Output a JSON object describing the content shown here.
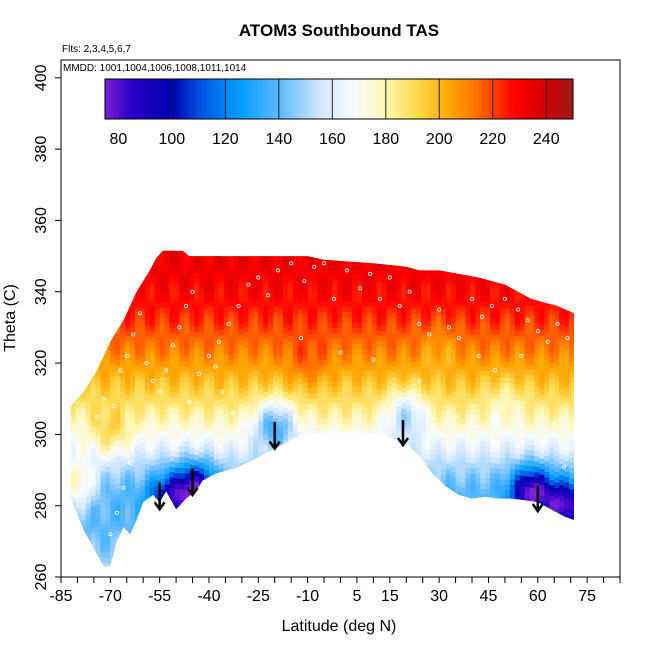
{
  "chart_data": {
    "type": "heatmap",
    "title": "ATOM3 Southbound TAS",
    "annotations": {
      "flights": "Flts: 2,3,4,5,6,7",
      "dates": "MMDD: 1001,1004,1006,1008,1011,1014"
    },
    "xlabel": "Latitude (deg N)",
    "ylabel": "Theta (C)",
    "xlim": [
      -85,
      85
    ],
    "ylim": [
      260,
      405
    ],
    "x_ticks": [
      -85,
      -80,
      -75,
      -70,
      -65,
      -60,
      -55,
      -50,
      -45,
      -40,
      -35,
      -30,
      -25,
      -20,
      -15,
      -10,
      -5,
      0,
      5,
      10,
      15,
      20,
      25,
      30,
      35,
      40,
      45,
      50,
      55,
      60,
      65,
      70,
      75,
      80,
      85
    ],
    "x_tick_labels": [
      {
        "value": -85,
        "label": "-85"
      },
      {
        "value": -70,
        "label": "-70"
      },
      {
        "value": -55,
        "label": "-55"
      },
      {
        "value": -40,
        "label": "-40"
      },
      {
        "value": -25,
        "label": "-25"
      },
      {
        "value": -10,
        "label": "-10"
      },
      {
        "value": 5,
        "label": "5"
      },
      {
        "value": 15,
        "label": "15"
      },
      {
        "value": 30,
        "label": "30"
      },
      {
        "value": 45,
        "label": "45"
      },
      {
        "value": 60,
        "label": "60"
      },
      {
        "value": 75,
        "label": "75"
      }
    ],
    "y_tick_labels": [
      {
        "value": 260,
        "label": "260"
      },
      {
        "value": 280,
        "label": "280"
      },
      {
        "value": 300,
        "label": "300"
      },
      {
        "value": 320,
        "label": "320"
      },
      {
        "value": 340,
        "label": "340"
      },
      {
        "value": 360,
        "label": "360"
      },
      {
        "value": 380,
        "label": "380"
      },
      {
        "value": 400,
        "label": "400"
      }
    ],
    "colorbar": {
      "range": [
        75,
        250
      ],
      "tick_labels": [
        {
          "value": 80,
          "label": "80"
        },
        {
          "value": 100,
          "label": "100"
        },
        {
          "value": 120,
          "label": "120"
        },
        {
          "value": 140,
          "label": "140"
        },
        {
          "value": 160,
          "label": "160"
        },
        {
          "value": 180,
          "label": "180"
        },
        {
          "value": 200,
          "label": "200"
        },
        {
          "value": 220,
          "label": "220"
        },
        {
          "value": 240,
          "label": "240"
        }
      ],
      "separators": [
        100,
        120,
        140,
        160,
        180,
        200,
        220,
        240
      ],
      "color_stops": [
        {
          "v": 75,
          "c": "#7b1fd4"
        },
        {
          "v": 85,
          "c": "#2a00c8"
        },
        {
          "v": 100,
          "c": "#0000b0"
        },
        {
          "v": 110,
          "c": "#0050e0"
        },
        {
          "v": 125,
          "c": "#009cff"
        },
        {
          "v": 140,
          "c": "#5bb8ff"
        },
        {
          "v": 155,
          "c": "#cfe6ff"
        },
        {
          "v": 168,
          "c": "#f8fbff"
        },
        {
          "v": 180,
          "c": "#fff6b0"
        },
        {
          "v": 192,
          "c": "#ffd84a"
        },
        {
          "v": 205,
          "c": "#ffa200"
        },
        {
          "v": 215,
          "c": "#ff6a00"
        },
        {
          "v": 228,
          "c": "#ff0000"
        },
        {
          "v": 240,
          "c": "#d40000"
        },
        {
          "v": 250,
          "c": "#9c1b1b"
        }
      ]
    },
    "domain": {
      "lat_range": [
        -82,
        71
      ],
      "lower_bound": [
        [
          -82,
          282
        ],
        [
          -78,
          273
        ],
        [
          -75,
          268
        ],
        [
          -72,
          263
        ],
        [
          -70,
          263
        ],
        [
          -68,
          270
        ],
        [
          -66,
          274
        ],
        [
          -64,
          272
        ],
        [
          -62,
          276
        ],
        [
          -60,
          281
        ],
        [
          -57,
          283
        ],
        [
          -55,
          281
        ],
        [
          -53,
          284
        ],
        [
          -50,
          279
        ],
        [
          -47,
          282
        ],
        [
          -44,
          284
        ],
        [
          -42,
          287
        ],
        [
          -38,
          289
        ],
        [
          -32,
          290.5
        ],
        [
          -26,
          293
        ],
        [
          -21,
          295.5
        ],
        [
          -16,
          298
        ],
        [
          -12,
          300
        ],
        [
          -5,
          300.5
        ],
        [
          0,
          300.5
        ],
        [
          5,
          300.5
        ],
        [
          10,
          300.3
        ],
        [
          15,
          299.2
        ],
        [
          18,
          298
        ],
        [
          21,
          296.5
        ],
        [
          24,
          294
        ],
        [
          28,
          289
        ],
        [
          32,
          285.5
        ],
        [
          36,
          283
        ],
        [
          40,
          282
        ],
        [
          44,
          282.5
        ],
        [
          48,
          282
        ],
        [
          52,
          282
        ],
        [
          56,
          281.5
        ],
        [
          60,
          281
        ],
        [
          64,
          279
        ],
        [
          68,
          277
        ],
        [
          71,
          276
        ]
      ],
      "upper_bound": [
        [
          -82,
          308
        ],
        [
          -78,
          312
        ],
        [
          -74,
          318
        ],
        [
          -70,
          326
        ],
        [
          -66,
          332
        ],
        [
          -62,
          340
        ],
        [
          -58,
          346
        ],
        [
          -56,
          349.5
        ],
        [
          -54,
          351.5
        ],
        [
          -48,
          351.5
        ],
        [
          -46,
          350
        ],
        [
          -30,
          350
        ],
        [
          -10,
          350
        ],
        [
          -5,
          349
        ],
        [
          10,
          348
        ],
        [
          20,
          347
        ],
        [
          24,
          346
        ],
        [
          30,
          346
        ],
        [
          36,
          345
        ],
        [
          42,
          344
        ],
        [
          46,
          343
        ],
        [
          50,
          342
        ],
        [
          54,
          340
        ],
        [
          58,
          338
        ],
        [
          62,
          337
        ],
        [
          66,
          336
        ],
        [
          71,
          334
        ]
      ]
    },
    "field": {
      "base_temperature": [
        [
          262,
          150
        ],
        [
          268,
          145
        ],
        [
          274,
          140
        ],
        [
          280,
          138
        ],
        [
          285,
          140
        ],
        [
          292,
          152
        ],
        [
          296,
          162
        ],
        [
          300,
          170
        ],
        [
          304,
          178
        ],
        [
          308,
          186
        ],
        [
          312,
          193
        ],
        [
          316,
          200
        ],
        [
          320,
          206
        ],
        [
          324,
          212
        ],
        [
          328,
          217
        ],
        [
          332,
          222
        ],
        [
          336,
          226
        ],
        [
          342,
          230
        ],
        [
          352,
          234
        ]
      ],
      "anomalies": [
        {
          "lat": -80,
          "theta": 286,
          "amplitude": 35
        },
        {
          "lat": -70,
          "theta": 300,
          "amplitude": 20
        },
        {
          "lat": -52,
          "theta": 282,
          "amplitude": -45
        },
        {
          "lat": -44,
          "theta": 285,
          "amplitude": -60
        },
        {
          "lat": -20,
          "theta": 303,
          "amplitude": -40
        },
        {
          "lat": 20,
          "theta": 306,
          "amplitude": -30
        },
        {
          "lat": 58,
          "theta": 284,
          "amplitude": -65
        },
        {
          "lat": 68,
          "theta": 280,
          "amplitude": -60
        },
        {
          "lat": 50,
          "theta": 310,
          "amplitude": -10
        },
        {
          "lat": -10,
          "theta": 320,
          "amplitude": 10
        },
        {
          "lat": 30,
          "theta": 325,
          "amplitude": -8
        }
      ]
    },
    "tropopause_arrows": [
      {
        "lat": -55,
        "theta_top": 286.5,
        "theta_tip": 279
      },
      {
        "lat": -45,
        "theta_top": 290.5,
        "theta_tip": 283
      },
      {
        "lat": -20,
        "theta_top": 303.5,
        "theta_tip": 296
      },
      {
        "lat": 19,
        "theta_top": 304,
        "theta_tip": 297
      },
      {
        "lat": 60,
        "theta_top": 285.5,
        "theta_tip": 278.5
      }
    ],
    "observation_points": [
      [
        -77,
        302
      ],
      [
        -74,
        305
      ],
      [
        -72,
        310
      ],
      [
        -69,
        308
      ],
      [
        -67,
        318
      ],
      [
        -65,
        322
      ],
      [
        -63,
        328
      ],
      [
        -61,
        334
      ],
      [
        -59,
        320
      ],
      [
        -57,
        315
      ],
      [
        -55,
        312
      ],
      [
        -53,
        318
      ],
      [
        -51,
        325
      ],
      [
        -49,
        330
      ],
      [
        -47,
        336
      ],
      [
        -45,
        340
      ],
      [
        -52,
        307
      ],
      [
        -49,
        298
      ],
      [
        -46,
        309
      ],
      [
        -43,
        317
      ],
      [
        -40,
        322
      ],
      [
        -37,
        326
      ],
      [
        -34,
        331
      ],
      [
        -31,
        336
      ],
      [
        -28,
        342
      ],
      [
        -25,
        344
      ],
      [
        -22,
        339
      ],
      [
        -19,
        346
      ],
      [
        -15,
        348
      ],
      [
        -11,
        343
      ],
      [
        -8,
        347
      ],
      [
        -5,
        348
      ],
      [
        -2,
        338
      ],
      [
        2,
        346
      ],
      [
        6,
        341
      ],
      [
        9,
        345
      ],
      [
        12,
        338
      ],
      [
        15,
        344
      ],
      [
        18,
        336
      ],
      [
        21,
        340
      ],
      [
        24,
        331
      ],
      [
        27,
        328
      ],
      [
        30,
        335
      ],
      [
        33,
        330
      ],
      [
        36,
        327
      ],
      [
        40,
        338
      ],
      [
        43,
        333
      ],
      [
        46,
        336
      ],
      [
        50,
        338
      ],
      [
        54,
        335
      ],
      [
        57,
        332
      ],
      [
        60,
        329
      ],
      [
        63,
        326
      ],
      [
        66,
        331
      ],
      [
        69,
        327
      ],
      [
        55,
        322
      ],
      [
        47,
        318
      ],
      [
        42,
        322
      ],
      [
        -38,
        319
      ],
      [
        -36,
        312
      ],
      [
        -33,
        306
      ],
      [
        -30,
        303
      ],
      [
        -27,
        300
      ],
      [
        -62,
        298
      ],
      [
        -64,
        292
      ],
      [
        -66,
        285
      ],
      [
        -68,
        278
      ],
      [
        -70,
        272
      ],
      [
        -58,
        296
      ],
      [
        -60,
        303
      ],
      [
        -12,
        327
      ],
      [
        0,
        323
      ],
      [
        10,
        321
      ],
      [
        24,
        315
      ],
      [
        65,
        303
      ],
      [
        62,
        298
      ],
      [
        70,
        296
      ],
      [
        68,
        291
      ],
      [
        35,
        305
      ],
      [
        38,
        300
      ]
    ]
  }
}
